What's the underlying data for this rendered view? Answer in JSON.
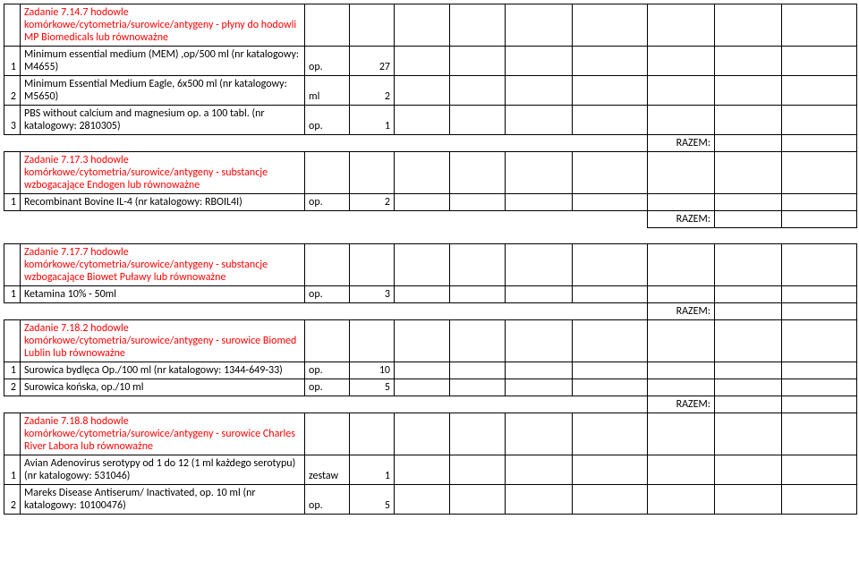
{
  "sections": [
    {
      "key": "s1",
      "header": "Zadanie 7.14.7 hodowle komórkowe/cytometria/surowice/antygeny - płyny do hodowli MP Biomedicals lub równoważne",
      "header_color": "#ff0000",
      "gap_before": false,
      "rows": [
        {
          "lp": "1",
          "desc": "Minimum essential medium (MEM) ,op/500 ml  (nr katalogowy: M4655)",
          "unit": "op.",
          "qty": "27"
        },
        {
          "lp": "2",
          "desc": "Minimum Essential Medium Eagle, 6x500 ml (nr katalogowy: M5650)",
          "unit": "ml",
          "qty": "2"
        },
        {
          "lp": "3",
          "desc": "PBS without calcium and magnesium op. a 100 tabl. (nr katalogowy: 2810305)",
          "unit": "op.",
          "qty": "1"
        }
      ],
      "razem": "RAZEM:"
    },
    {
      "key": "s2",
      "header": "Zadanie 7.17.3 hodowle komórkowe/cytometria/surowice/antygeny - substancje wzbogacające Endogen lub równoważne",
      "header_color": "#ff0000",
      "gap_before": false,
      "rows": [
        {
          "lp": "1",
          "desc": "Recombinant Bovine IL-4 (nr katalogowy: RBOIL4I)",
          "unit": "op.",
          "qty": "2"
        }
      ],
      "razem": "RAZEM:"
    },
    {
      "key": "s3",
      "header": "Zadanie 7.17.7 hodowle komórkowe/cytometria/surowice/antygeny - substancje wzbogacające Biowet Puławy lub równoważne",
      "header_color": "#ff0000",
      "gap_before": true,
      "rows": [
        {
          "lp": "1",
          "desc": "Ketamina 10% - 50ml",
          "unit": "op.",
          "qty": "3"
        }
      ],
      "razem": "RAZEM:"
    },
    {
      "key": "s4",
      "header": "Zadanie 7.18.2 hodowle komórkowe/cytometria/surowice/antygeny - surowice Biomed Lublin lub równoważne",
      "header_color": "#ff0000",
      "gap_before": false,
      "rows": [
        {
          "lp": "1",
          "desc": "Surowica bydlęca Op./100 ml  (nr katalogowy: 1344-649-33)",
          "unit": "op.",
          "qty": "10"
        },
        {
          "lp": "2",
          "desc": "Surowica końska, op./10 ml",
          "unit": "op.",
          "qty": "5"
        }
      ],
      "razem": "RAZEM:"
    },
    {
      "key": "s5",
      "header": "Zadanie 7.18.8 hodowle komórkowe/cytometria/surowice/antygeny - surowice Charles River Labora lub równoważne",
      "header_color": "#ff0000",
      "gap_before": false,
      "rows": [
        {
          "lp": "1",
          "desc": "Avian Adenovirus serotypy od 1 do 12 (1 ml każdego serotypu) (nr katalogowy: 531046)",
          "unit": "zestaw",
          "qty": "1"
        },
        {
          "lp": "2",
          "desc": "Mareks Disease Antiserum/ Inactivated, op. 10 ml (nr katalogowy: 10100476)",
          "unit": "op.",
          "qty": "5"
        }
      ],
      "razem": null
    }
  ]
}
